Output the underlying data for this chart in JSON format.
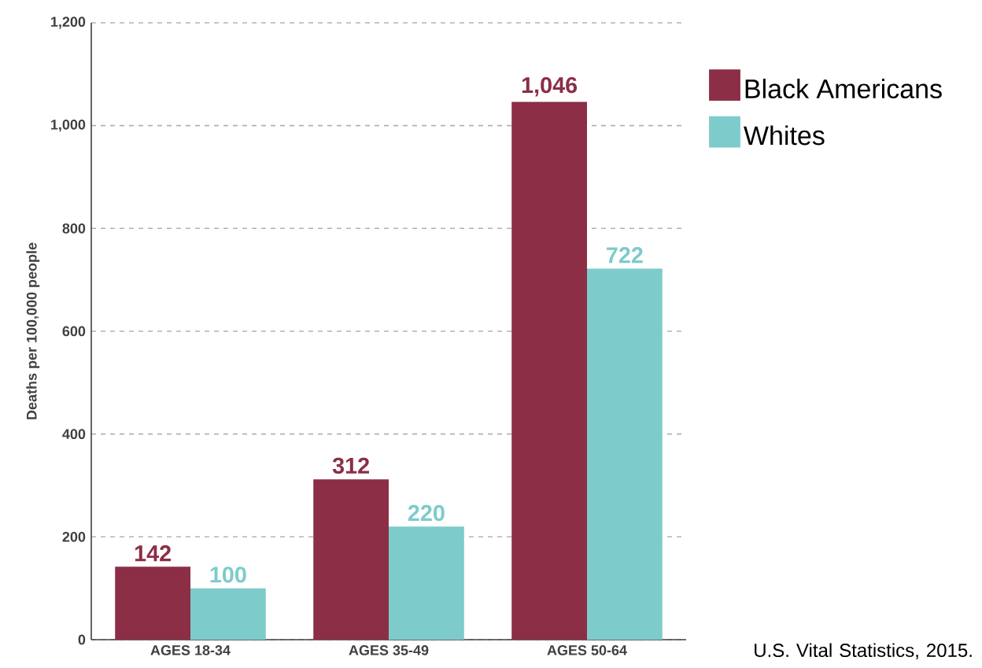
{
  "chart_data": {
    "type": "bar",
    "categories": [
      "AGES 18-34",
      "AGES 35-49",
      "AGES 50-64"
    ],
    "series": [
      {
        "name": "Black Americans",
        "color": "#8b2e46",
        "values": [
          142,
          312,
          1046
        ],
        "value_labels": [
          "142",
          "312",
          "1,046"
        ]
      },
      {
        "name": "Whites",
        "color": "#7ecbcb",
        "values": [
          100,
          220,
          722
        ],
        "value_labels": [
          "100",
          "220",
          "722"
        ]
      }
    ],
    "ylabel": "Deaths per 100,000 people",
    "ylim": [
      0,
      1200
    ],
    "yticks": [
      0,
      200,
      400,
      600,
      800,
      {
        "value": 1000,
        "label": "1,000"
      },
      {
        "value": 1200,
        "label": "1,200"
      }
    ],
    "grid": "y",
    "legend": "top right",
    "annotations": [
      "U.S. Vital Statistics, 2015."
    ]
  }
}
